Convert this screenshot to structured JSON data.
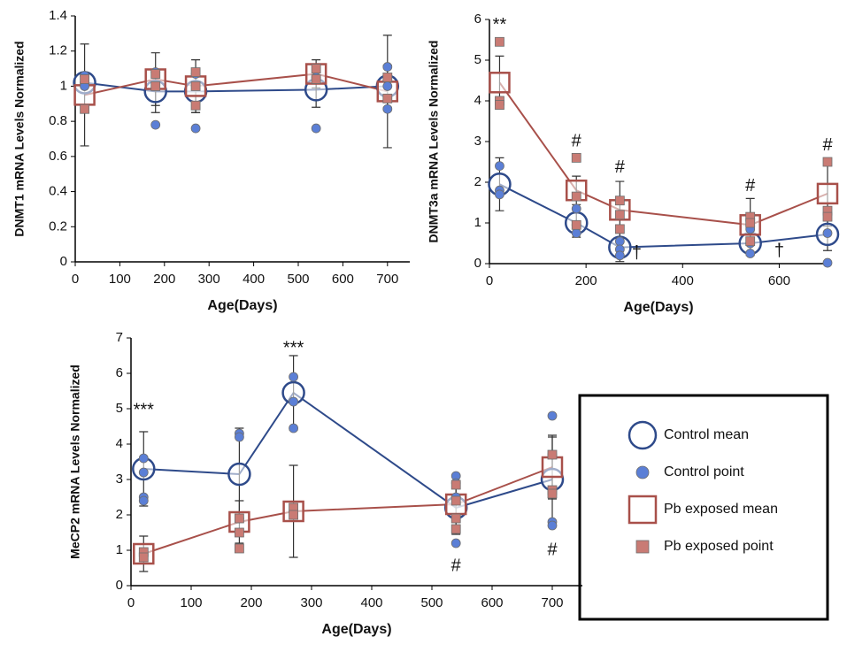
{
  "chart_data": [
    {
      "type": "line",
      "xlabel": "Age(Days)",
      "ylabel": "DNMT1 mRNA  Levels Normalized",
      "xlim": [
        0,
        750
      ],
      "ylim": [
        0,
        1.4
      ],
      "xticks": [
        0,
        100,
        200,
        300,
        400,
        500,
        600,
        700
      ],
      "yticks": [
        0,
        0.2,
        0.4,
        0.6,
        0.8,
        1,
        1.2,
        1.4
      ],
      "series": [
        {
          "style": "mean",
          "marker": "circle",
          "color": "#2e4a8a",
          "x": [
            21,
            180,
            270,
            540,
            700
          ],
          "values": [
            1.02,
            0.97,
            0.97,
            0.98,
            1.0
          ],
          "errors": [
            0.03,
            0.12,
            0.12,
            0.1,
            0.12
          ]
        },
        {
          "style": "mean",
          "marker": "square",
          "color": "#a8504a",
          "x": [
            21,
            180,
            270,
            540,
            700
          ],
          "values": [
            0.95,
            1.04,
            1.0,
            1.07,
            0.97
          ],
          "errors": [
            0.29,
            0.15,
            0.15,
            0.08,
            0.32
          ]
        },
        {
          "style": "point",
          "marker": "circle",
          "color": "#5b7fd6",
          "x": [
            21,
            21,
            21,
            180,
            180,
            270,
            270,
            540,
            540,
            700,
            700,
            700
          ],
          "values": [
            1.06,
            1.02,
            1.0,
            1.08,
            0.78,
            1.07,
            0.76,
            1.05,
            0.76,
            1.11,
            1.0,
            0.87
          ]
        },
        {
          "style": "point",
          "marker": "square",
          "color": "#c97b74",
          "x": [
            21,
            21,
            180,
            180,
            270,
            270,
            270,
            540,
            540,
            700,
            700
          ],
          "values": [
            1.04,
            0.87,
            1.07,
            1.0,
            1.0,
            0.89,
            1.08,
            1.1,
            1.04,
            1.05,
            0.93
          ]
        }
      ]
    },
    {
      "type": "line",
      "xlabel": "Age(Days)",
      "ylabel": "DNMT3a mRNA  Levels Normalized",
      "xlim": [
        0,
        700
      ],
      "ylim": [
        0,
        6
      ],
      "xticks": [
        0,
        200,
        400,
        600
      ],
      "yticks": [
        0,
        1,
        2,
        3,
        4,
        5,
        6
      ],
      "series": [
        {
          "style": "mean",
          "marker": "circle",
          "color": "#2e4a8a",
          "x": [
            21,
            180,
            270,
            540,
            700
          ],
          "values": [
            1.95,
            1.0,
            0.4,
            0.5,
            0.72
          ],
          "errors": [
            0.65,
            0.35,
            0.35,
            0.3,
            0.4
          ]
        },
        {
          "style": "mean",
          "marker": "square",
          "color": "#a8504a",
          "x": [
            21,
            180,
            270,
            540,
            700
          ],
          "values": [
            4.45,
            1.8,
            1.32,
            0.95,
            1.72
          ],
          "errors": [
            0.65,
            0.35,
            0.7,
            0.65,
            0.8
          ]
        },
        {
          "style": "point",
          "marker": "circle",
          "color": "#5b7fd6",
          "x": [
            21,
            21,
            21,
            180,
            180,
            180,
            270,
            270,
            270,
            540,
            540,
            540,
            700,
            700
          ],
          "values": [
            2.4,
            1.8,
            1.7,
            1.35,
            0.95,
            0.75,
            0.55,
            0.35,
            0.2,
            0.85,
            0.5,
            0.25,
            0.75,
            0.02
          ]
        },
        {
          "style": "point",
          "marker": "square",
          "color": "#c97b74",
          "x": [
            21,
            21,
            21,
            180,
            180,
            180,
            270,
            270,
            270,
            540,
            540,
            540,
            700,
            700,
            700
          ],
          "values": [
            5.45,
            4.0,
            3.9,
            2.6,
            1.65,
            0.95,
            1.55,
            1.2,
            0.85,
            1.15,
            1.0,
            0.55,
            2.5,
            1.3,
            1.15
          ]
        }
      ],
      "annotations": [
        {
          "text": "**",
          "x": 21,
          "y": 5.85
        },
        {
          "text": "#",
          "x": 180,
          "y": 3.0
        },
        {
          "text": "#",
          "x": 270,
          "y": 2.35
        },
        {
          "text": "#",
          "x": 540,
          "y": 1.9
        },
        {
          "text": "#",
          "x": 700,
          "y": 2.9
        },
        {
          "text": "†",
          "x": 305,
          "y": 0.25
        },
        {
          "text": "†",
          "x": 600,
          "y": 0.3
        }
      ]
    },
    {
      "type": "line",
      "xlabel": "Age(Days)",
      "ylabel": "MeCP2 mRNA  Levels Normalized",
      "xlim": [
        0,
        750
      ],
      "ylim": [
        0,
        7
      ],
      "xticks": [
        0,
        100,
        200,
        300,
        400,
        500,
        600,
        700
      ],
      "yticks": [
        0,
        1,
        2,
        3,
        4,
        5,
        6,
        7
      ],
      "series": [
        {
          "name": "Control mean",
          "style": "mean",
          "marker": "circle",
          "color": "#2e4a8a",
          "x": [
            21,
            180,
            270,
            540,
            700
          ],
          "values": [
            3.3,
            3.15,
            5.45,
            2.2,
            3.0
          ],
          "errors": [
            1.05,
            1.3,
            1.05,
            0.75,
            1.2
          ]
        },
        {
          "name": "Control point",
          "style": "point",
          "marker": "circle",
          "color": "#5b7fd6",
          "x": [
            21,
            21,
            21,
            21,
            180,
            180,
            180,
            270,
            270,
            270,
            540,
            540,
            540,
            540,
            700,
            700,
            700,
            700
          ],
          "values": [
            3.6,
            3.2,
            2.5,
            2.4,
            4.3,
            4.2,
            1.9,
            5.9,
            5.2,
            4.45,
            3.1,
            2.9,
            2.5,
            1.2,
            4.8,
            3.7,
            1.8,
            1.7
          ]
        },
        {
          "name": "Pb exposed mean",
          "style": "mean",
          "marker": "square",
          "color": "#a8504a",
          "x": [
            21,
            180,
            270,
            540,
            700
          ],
          "values": [
            0.9,
            1.8,
            2.1,
            2.3,
            3.35
          ],
          "errors": [
            0.5,
            0.6,
            1.3,
            0.8,
            0.9
          ]
        },
        {
          "name": "Pb exposed point",
          "style": "point",
          "marker": "square",
          "color": "#c97b74",
          "x": [
            21,
            21,
            180,
            180,
            180,
            270,
            270,
            540,
            540,
            540,
            540,
            700,
            700,
            700
          ],
          "values": [
            0.95,
            0.8,
            1.5,
            1.05,
            1.9,
            2.2,
            2.0,
            2.85,
            2.4,
            1.9,
            1.6,
            3.7,
            2.7,
            2.6
          ]
        }
      ],
      "annotations": [
        {
          "text": "***",
          "x": 21,
          "y": 4.95
        },
        {
          "text": "***",
          "x": 270,
          "y": 6.7
        },
        {
          "text": "#",
          "x": 540,
          "y": 0.55
        },
        {
          "text": "#",
          "x": 700,
          "y": 1.0
        }
      ]
    }
  ]
}
